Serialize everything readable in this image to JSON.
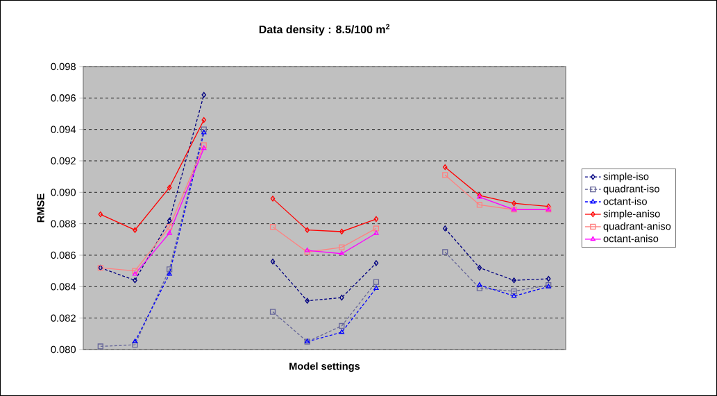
{
  "chart_data": {
    "type": "line",
    "title": "Data density  : 8.5/100 m$^{2}$",
    "xlabel": "Model settings",
    "ylabel": "RMSE",
    "categories": [
      null,
      null,
      null,
      null,
      null,
      null,
      null,
      null,
      null,
      null,
      null,
      null,
      null,
      null
    ],
    "series": [
      {
        "name": "simple-iso",
        "color": "#000080",
        "marker": "diamond",
        "line_style": "dotted",
        "values": [
          0.0852,
          0.0844,
          0.0882,
          0.0962,
          null,
          0.0856,
          0.0831,
          0.0833,
          0.0855,
          null,
          0.0877,
          0.0852,
          0.0844,
          0.0845
        ]
      },
      {
        "name": "quadrant-iso",
        "color": "#666699",
        "marker": "square",
        "line_style": "dotted",
        "values": [
          0.0802,
          0.0803,
          0.0851,
          0.094,
          null,
          0.0824,
          0.0805,
          0.0815,
          0.0843,
          null,
          0.0862,
          0.0839,
          0.0837,
          0.0841
        ]
      },
      {
        "name": "octant-iso",
        "color": "#0000ff",
        "marker": "triangle",
        "line_style": "dotted",
        "values": [
          null,
          0.0805,
          0.0848,
          0.0938,
          null,
          null,
          0.0805,
          0.0811,
          0.0839,
          null,
          null,
          0.0841,
          0.0834,
          0.084
        ]
      },
      {
        "name": "simple-aniso",
        "color": "#ff0000",
        "marker": "diamond",
        "line_style": "solid",
        "values": [
          0.0886,
          0.0876,
          0.0903,
          0.0946,
          null,
          0.0896,
          0.0876,
          0.0875,
          0.0883,
          null,
          0.0916,
          0.0898,
          0.0893,
          0.0891
        ]
      },
      {
        "name": "quadrant-aniso",
        "color": "#ff8080",
        "marker": "square",
        "line_style": "solid",
        "values": [
          0.0852,
          0.085,
          0.0878,
          0.093,
          null,
          0.0878,
          0.0862,
          0.0865,
          0.0877,
          null,
          0.0911,
          0.0892,
          0.0889,
          0.0889
        ]
      },
      {
        "name": "octant-aniso",
        "color": "#ff00ff",
        "marker": "triangle",
        "line_style": "solid",
        "values": [
          null,
          0.0848,
          0.0874,
          0.0928,
          null,
          null,
          0.0863,
          0.0861,
          0.0874,
          null,
          null,
          0.0897,
          0.0889,
          0.0889
        ]
      }
    ],
    "ylim": [
      0.08,
      0.098
    ],
    "yticks": [
      {
        "value": 0.08,
        "label": "0.080"
      },
      {
        "value": 0.082,
        "label": "0.082"
      },
      {
        "value": 0.084,
        "label": "0.084"
      },
      {
        "value": 0.086,
        "label": "0.086"
      },
      {
        "value": 0.088,
        "label": "0.088"
      },
      {
        "value": 0.09,
        "label": "0.090"
      },
      {
        "value": 0.092,
        "label": "0.092"
      },
      {
        "value": 0.094,
        "label": "0.094"
      },
      {
        "value": 0.096,
        "label": "0.096"
      },
      {
        "value": 0.098,
        "label": "0.098"
      }
    ],
    "grid": "y",
    "legend": "right"
  }
}
